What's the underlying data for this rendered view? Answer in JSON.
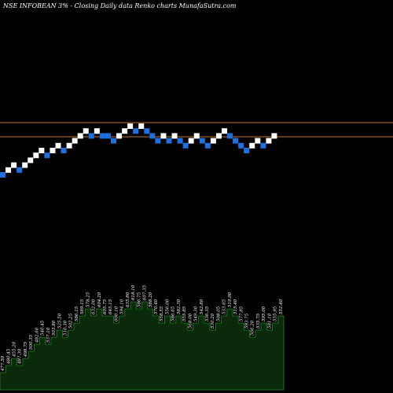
{
  "chart_data": {
    "type": "renko",
    "title": "NSE INFOBEAN  3% -  Closing Daily data  Renko  charts MunafaSutra.com",
    "colors": {
      "background": "#000000",
      "up_brick": "#ffffff",
      "down_brick": "#1e6fe0",
      "level_line": "#c8742a",
      "volume_fill": "#0b2a0b",
      "volume_stroke": "#1e8a1e"
    },
    "bricks": [
      {
        "col": 0,
        "row": 0,
        "dir": "down"
      },
      {
        "col": 1,
        "row": 1,
        "dir": "up"
      },
      {
        "col": 2,
        "row": 2,
        "dir": "up"
      },
      {
        "col": 3,
        "row": 1,
        "dir": "down"
      },
      {
        "col": 4,
        "row": 2,
        "dir": "up"
      },
      {
        "col": 5,
        "row": 3,
        "dir": "up"
      },
      {
        "col": 6,
        "row": 4,
        "dir": "up"
      },
      {
        "col": 7,
        "row": 5,
        "dir": "up"
      },
      {
        "col": 8,
        "row": 4,
        "dir": "down"
      },
      {
        "col": 9,
        "row": 5,
        "dir": "up"
      },
      {
        "col": 10,
        "row": 6,
        "dir": "up"
      },
      {
        "col": 11,
        "row": 5,
        "dir": "down"
      },
      {
        "col": 12,
        "row": 6,
        "dir": "up"
      },
      {
        "col": 13,
        "row": 7,
        "dir": "up"
      },
      {
        "col": 14,
        "row": 8,
        "dir": "up"
      },
      {
        "col": 15,
        "row": 9,
        "dir": "up"
      },
      {
        "col": 16,
        "row": 8,
        "dir": "down"
      },
      {
        "col": 17,
        "row": 9,
        "dir": "up"
      },
      {
        "col": 18,
        "row": 8,
        "dir": "down"
      },
      {
        "col": 19,
        "row": 8,
        "dir": "down"
      },
      {
        "col": 20,
        "row": 7,
        "dir": "down"
      },
      {
        "col": 21,
        "row": 8,
        "dir": "up"
      },
      {
        "col": 22,
        "row": 9,
        "dir": "up"
      },
      {
        "col": 23,
        "row": 10,
        "dir": "up"
      },
      {
        "col": 24,
        "row": 9,
        "dir": "down"
      },
      {
        "col": 25,
        "row": 10,
        "dir": "up"
      },
      {
        "col": 26,
        "row": 9,
        "dir": "down"
      },
      {
        "col": 27,
        "row": 8,
        "dir": "down"
      },
      {
        "col": 28,
        "row": 7,
        "dir": "down"
      },
      {
        "col": 29,
        "row": 8,
        "dir": "up"
      },
      {
        "col": 30,
        "row": 7,
        "dir": "down"
      },
      {
        "col": 31,
        "row": 8,
        "dir": "up"
      },
      {
        "col": 32,
        "row": 7,
        "dir": "down"
      },
      {
        "col": 33,
        "row": 6,
        "dir": "down"
      },
      {
        "col": 34,
        "row": 7,
        "dir": "up"
      },
      {
        "col": 35,
        "row": 8,
        "dir": "up"
      },
      {
        "col": 36,
        "row": 7,
        "dir": "down"
      },
      {
        "col": 37,
        "row": 6,
        "dir": "down"
      },
      {
        "col": 38,
        "row": 7,
        "dir": "up"
      },
      {
        "col": 39,
        "row": 8,
        "dir": "up"
      },
      {
        "col": 40,
        "row": 9,
        "dir": "up"
      },
      {
        "col": 41,
        "row": 8,
        "dir": "down"
      },
      {
        "col": 42,
        "row": 7,
        "dir": "down"
      },
      {
        "col": 43,
        "row": 6,
        "dir": "down"
      },
      {
        "col": 44,
        "row": 5,
        "dir": "down"
      },
      {
        "col": 45,
        "row": 6,
        "dir": "up"
      },
      {
        "col": 46,
        "row": 7,
        "dir": "up"
      },
      {
        "col": 47,
        "row": 6,
        "dir": "down"
      },
      {
        "col": 48,
        "row": 7,
        "dir": "up"
      },
      {
        "col": 49,
        "row": 8,
        "dir": "up"
      }
    ],
    "level_lines": [
      "upper",
      "lower"
    ],
    "volume_labels": [
      "477.50",
      "480.45",
      "455.20",
      "487.30",
      "498.75",
      "500.35",
      "482.60",
      "540.45",
      "537.10",
      "503.80",
      "525.50",
      "510.30",
      "502.25",
      "586.15",
      "589.15",
      "578.25",
      "632.00",
      "604.20",
      "605.75",
      "645.15",
      "600.10",
      "594.10",
      "635.80",
      "618.10",
      "586.75",
      "607.35",
      "588.20",
      "570.40",
      "558.55",
      "556.00",
      "586.65",
      "582.30",
      "555.85",
      "568.00",
      "549.30",
      "542.80",
      "536.35",
      "530.20",
      "508.05",
      "533.65",
      "519.90",
      "515.40",
      "577.85",
      "593.75",
      "566.20",
      "535.75",
      "595.00",
      "581.10",
      "555.95",
      "552.40"
    ]
  }
}
